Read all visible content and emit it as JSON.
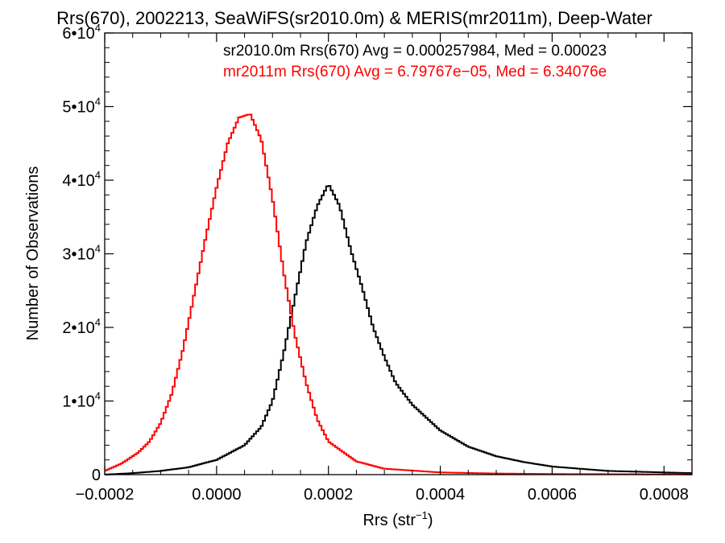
{
  "chart_data": {
    "type": "line",
    "title": "Rrs(670), 2002213, SeaWiFS(sr2010.0m) & MERIS(mr2011m), Deep-Water",
    "xlabel": "Rrs (str",
    "xlabel_sup": "−1",
    "xlabel_suffix": ")",
    "ylabel": "Number of Observations",
    "xlim": [
      -0.0002,
      0.00085
    ],
    "ylim": [
      0,
      60000
    ],
    "x_ticks": [
      -0.0002,
      0.0,
      0.0002,
      0.0004,
      0.0006,
      0.0008
    ],
    "x_tick_labels": [
      "−0.0002",
      "0.0000",
      "0.0002",
      "0.0004",
      "0.0006",
      "0.0008"
    ],
    "y_ticks": [
      0,
      10000,
      20000,
      30000,
      40000,
      50000,
      60000
    ],
    "y_tick_labels": [
      {
        "value": 0,
        "mant": "0",
        "exp": ""
      },
      {
        "value": 10000,
        "mant": "1•10",
        "exp": "4"
      },
      {
        "value": 20000,
        "mant": "2•10",
        "exp": "4"
      },
      {
        "value": 30000,
        "mant": "3•10",
        "exp": "4"
      },
      {
        "value": 40000,
        "mant": "4•10",
        "exp": "4"
      },
      {
        "value": 50000,
        "mant": "5•10",
        "exp": "4"
      },
      {
        "value": 60000,
        "mant": "6•10",
        "exp": "4"
      }
    ],
    "series": [
      {
        "name": "sr2010.0m",
        "color": "#000000",
        "legend_text": "sr2010.0m Rrs(670) Avg = 0.000257984, Med = 0.00023",
        "x": [
          -0.0002,
          -0.00015,
          -0.0001,
          -5e-05,
          0.0,
          5e-05,
          8e-05,
          0.0001,
          0.00012,
          0.00014,
          0.00016,
          0.00018,
          0.0002,
          0.00022,
          0.00024,
          0.00026,
          0.00028,
          0.0003,
          0.00032,
          0.00035,
          0.0004,
          0.00045,
          0.0005,
          0.00055,
          0.0006,
          0.0007,
          0.00085
        ],
        "y": [
          0,
          200,
          500,
          1000,
          2000,
          4000,
          6500,
          10000,
          16500,
          24000,
          31500,
          36500,
          39500,
          36500,
          30500,
          25500,
          20000,
          16000,
          12500,
          9500,
          6000,
          3800,
          2500,
          1700,
          1100,
          500,
          200
        ]
      },
      {
        "name": "mr2011m",
        "color": "#ff0000",
        "legend_text": "mr2011m Rrs(670) Avg = 6.79767e−05, Med = 6.34076e",
        "x": [
          -0.0002,
          -0.00017,
          -0.00014,
          -0.00012,
          -0.0001,
          -8e-05,
          -6e-05,
          -4e-05,
          -2e-05,
          0.0,
          2e-05,
          4e-05,
          6e-05,
          8e-05,
          0.0001,
          0.00012,
          0.00014,
          0.00016,
          0.00018,
          0.0002,
          0.00025,
          0.0003,
          0.0004,
          0.0005,
          0.0006,
          0.00085
        ],
        "y": [
          500,
          1500,
          3000,
          4500,
          7000,
          11000,
          17000,
          24500,
          32000,
          39000,
          45000,
          48500,
          49000,
          45500,
          37500,
          27500,
          19000,
          12500,
          7500,
          4500,
          1800,
          800,
          300,
          150,
          80,
          30
        ]
      }
    ]
  }
}
